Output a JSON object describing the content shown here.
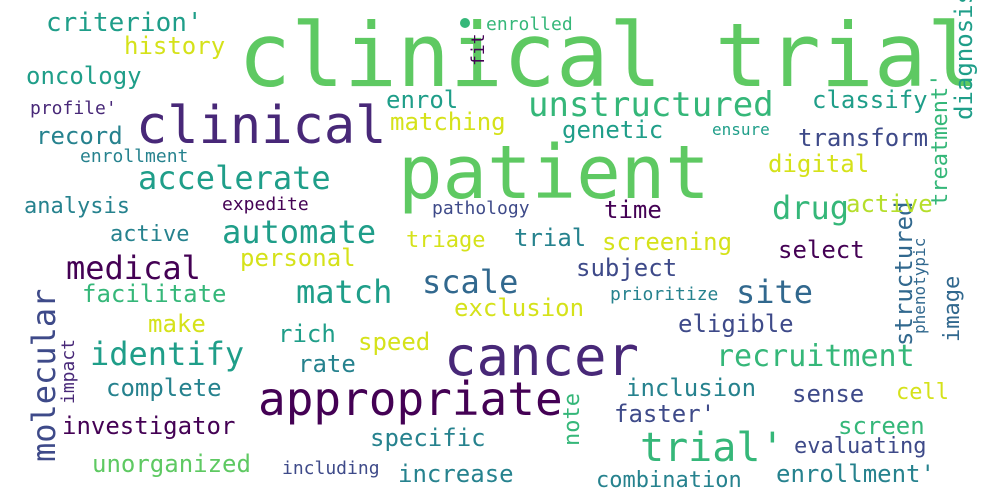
{
  "colors": {
    "background": "#ffffff",
    "dark_purple": "#440154",
    "purple": "#482878",
    "indigo": "#3e4a89",
    "blue": "#31688e",
    "teal_blue": "#26828e",
    "teal": "#1f9e89",
    "green_teal": "#35b779",
    "green": "#5ec962",
    "yellow_green": "#b5de2b",
    "yellow": "#d5e21a"
  },
  "words": [
    "clinical trial",
    "patient",
    "clinical",
    "cancer",
    "appropriate",
    "unstructured",
    "accelerate",
    "automate",
    "medical",
    "trial'",
    "recruitment",
    "identify",
    "match",
    "scale",
    "site",
    "drug",
    "molecular",
    "criterion'",
    "history",
    "enrolled",
    "fit",
    "diagnosis'",
    "oncology",
    "profile'",
    "enrol",
    "classify",
    "record",
    "matching",
    "genetic",
    "ensure",
    "transform",
    "enrollment",
    "digital",
    "diagnosis",
    "analysis",
    "treatment'",
    "expedite",
    "pathology",
    "time",
    "structured",
    "active",
    "triage",
    "trial",
    "screening",
    "select",
    "personal",
    "subject",
    "phenotypic",
    "facilitate",
    "exclusion",
    "prioritize",
    "image",
    "make",
    "eligible",
    "impact",
    "rich",
    "speed",
    "rate",
    "complete",
    "inclusion",
    "sense",
    "cell",
    "note",
    "faster'",
    "investigator",
    "specific",
    "screen",
    "evaluating",
    "unorganized",
    "including",
    "increase",
    "combination",
    "enrollment'"
  ]
}
